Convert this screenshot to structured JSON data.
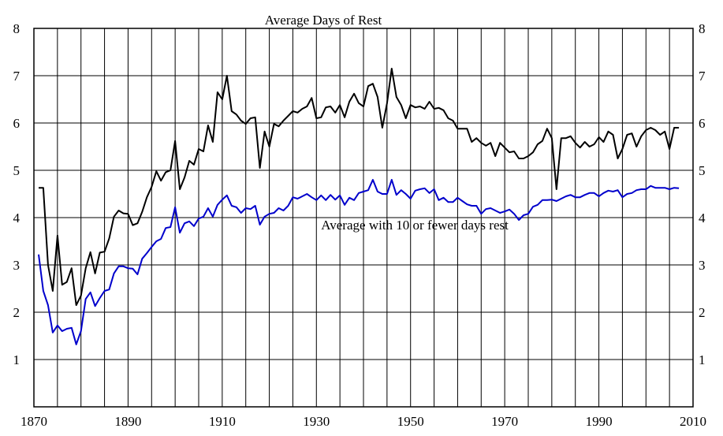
{
  "chart_data": {
    "type": "line",
    "title": "Average Days of Rest",
    "xlabel": "",
    "ylabel": "",
    "xlim": [
      1870,
      2010
    ],
    "ylim": [
      0,
      8
    ],
    "x_ticks": [
      1870,
      1890,
      1910,
      1930,
      1950,
      1970,
      1990,
      2010
    ],
    "y_ticks": [
      1,
      2,
      3,
      4,
      5,
      6,
      7,
      8
    ],
    "x_grid_step": 5,
    "y_grid_step": 1,
    "grid": true,
    "annotation": {
      "text": "Average with 10 or fewer days rest",
      "color": "#0000cc",
      "x": 1931,
      "y": 3.75
    },
    "series": [
      {
        "color": "#000000",
        "x": [
          1871,
          1872,
          1873,
          1874,
          1875,
          1876,
          1877,
          1878,
          1879,
          1880,
          1881,
          1882,
          1883,
          1884,
          1885,
          1886,
          1887,
          1888,
          1889,
          1890,
          1891,
          1892,
          1893,
          1894,
          1895,
          1896,
          1897,
          1898,
          1899,
          1900,
          1901,
          1902,
          1903,
          1904,
          1905,
          1906,
          1907,
          1908,
          1909,
          1910,
          1911,
          1912,
          1913,
          1914,
          1915,
          1916,
          1917,
          1918,
          1919,
          1920,
          1921,
          1922,
          1923,
          1924,
          1925,
          1926,
          1927,
          1928,
          1929,
          1930,
          1931,
          1932,
          1933,
          1934,
          1935,
          1936,
          1937,
          1938,
          1939,
          1940,
          1941,
          1942,
          1943,
          1944,
          1945,
          1946,
          1947,
          1948,
          1949,
          1950,
          1951,
          1952,
          1953,
          1954,
          1955,
          1956,
          1957,
          1958,
          1959,
          1960,
          1961,
          1962,
          1963,
          1964,
          1965,
          1966,
          1967,
          1968,
          1969,
          1970,
          1971,
          1972,
          1973,
          1974,
          1975,
          1976,
          1977,
          1978,
          1979,
          1980,
          1981,
          1982,
          1983,
          1984,
          1985,
          1986,
          1987,
          1988,
          1989,
          1990,
          1991,
          1992,
          1993,
          1994,
          1995,
          1996,
          1997,
          1998,
          1999,
          2000,
          2001,
          2002,
          2003,
          2004,
          2005,
          2006,
          2007
        ],
        "values": [
          4.63,
          4.63,
          3.0,
          2.45,
          3.62,
          2.58,
          2.64,
          2.93,
          2.15,
          2.35,
          2.93,
          3.27,
          2.82,
          3.26,
          3.28,
          3.56,
          4.02,
          4.15,
          4.09,
          4.08,
          3.84,
          3.88,
          4.12,
          4.43,
          4.65,
          4.98,
          4.78,
          4.96,
          5.0,
          5.62,
          4.6,
          4.85,
          5.2,
          5.12,
          5.45,
          5.4,
          5.95,
          5.6,
          6.65,
          6.5,
          7.0,
          6.25,
          6.18,
          6.05,
          5.98,
          6.1,
          6.12,
          5.05,
          5.82,
          5.5,
          5.98,
          5.93,
          6.05,
          6.15,
          6.25,
          6.22,
          6.3,
          6.35,
          6.53,
          6.1,
          6.12,
          6.33,
          6.35,
          6.22,
          6.38,
          6.12,
          6.45,
          6.62,
          6.42,
          6.35,
          6.78,
          6.83,
          6.55,
          5.9,
          6.42,
          7.15,
          6.55,
          6.38,
          6.1,
          6.38,
          6.33,
          6.35,
          6.3,
          6.45,
          6.3,
          6.32,
          6.27,
          6.1,
          6.05,
          5.88,
          5.88,
          5.88,
          5.6,
          5.68,
          5.58,
          5.52,
          5.58,
          5.3,
          5.58,
          5.48,
          5.38,
          5.4,
          5.25,
          5.25,
          5.3,
          5.38,
          5.55,
          5.62,
          5.88,
          5.68,
          4.6,
          5.68,
          5.68,
          5.72,
          5.58,
          5.48,
          5.6,
          5.5,
          5.55,
          5.7,
          5.6,
          5.82,
          5.75,
          5.25,
          5.45,
          5.75,
          5.78,
          5.5,
          5.72,
          5.85,
          5.9,
          5.85,
          5.75,
          5.82,
          5.45,
          5.9,
          5.9
        ]
      },
      {
        "color": "#0000cc",
        "x": [
          1871,
          1872,
          1873,
          1874,
          1875,
          1876,
          1877,
          1878,
          1879,
          1880,
          1881,
          1882,
          1883,
          1884,
          1885,
          1886,
          1887,
          1888,
          1889,
          1890,
          1891,
          1892,
          1893,
          1894,
          1895,
          1896,
          1897,
          1898,
          1899,
          1900,
          1901,
          1902,
          1903,
          1904,
          1905,
          1906,
          1907,
          1908,
          1909,
          1910,
          1911,
          1912,
          1913,
          1914,
          1915,
          1916,
          1917,
          1918,
          1919,
          1920,
          1921,
          1922,
          1923,
          1924,
          1925,
          1926,
          1927,
          1928,
          1929,
          1930,
          1931,
          1932,
          1933,
          1934,
          1935,
          1936,
          1937,
          1938,
          1939,
          1940,
          1941,
          1942,
          1943,
          1944,
          1945,
          1946,
          1947,
          1948,
          1949,
          1950,
          1951,
          1952,
          1953,
          1954,
          1955,
          1956,
          1957,
          1958,
          1959,
          1960,
          1961,
          1962,
          1963,
          1964,
          1965,
          1966,
          1967,
          1968,
          1969,
          1970,
          1971,
          1972,
          1973,
          1974,
          1975,
          1976,
          1977,
          1978,
          1979,
          1980,
          1981,
          1982,
          1983,
          1984,
          1985,
          1986,
          1987,
          1988,
          1989,
          1990,
          1991,
          1992,
          1993,
          1994,
          1995,
          1996,
          1997,
          1998,
          1999,
          2000,
          2001,
          2002,
          2003,
          2004,
          2005,
          2006,
          2007
        ],
        "values": [
          3.22,
          2.45,
          2.15,
          1.57,
          1.72,
          1.6,
          1.65,
          1.67,
          1.32,
          1.6,
          2.28,
          2.42,
          2.13,
          2.3,
          2.45,
          2.48,
          2.82,
          2.97,
          2.97,
          2.93,
          2.92,
          2.8,
          3.13,
          3.25,
          3.38,
          3.5,
          3.55,
          3.78,
          3.8,
          4.22,
          3.68,
          3.88,
          3.92,
          3.82,
          3.98,
          4.02,
          4.2,
          4.02,
          4.27,
          4.38,
          4.47,
          4.25,
          4.22,
          4.1,
          4.2,
          4.18,
          4.25,
          3.85,
          4.02,
          4.08,
          4.1,
          4.2,
          4.15,
          4.25,
          4.43,
          4.4,
          4.45,
          4.5,
          4.43,
          4.37,
          4.47,
          4.37,
          4.48,
          4.38,
          4.47,
          4.27,
          4.42,
          4.37,
          4.52,
          4.55,
          4.58,
          4.8,
          4.55,
          4.5,
          4.5,
          4.8,
          4.48,
          4.58,
          4.5,
          4.4,
          4.57,
          4.6,
          4.62,
          4.52,
          4.6,
          4.37,
          4.42,
          4.33,
          4.33,
          4.42,
          4.35,
          4.28,
          4.25,
          4.25,
          4.08,
          4.18,
          4.2,
          4.15,
          4.1,
          4.13,
          4.17,
          4.08,
          3.95,
          4.05,
          4.08,
          4.23,
          4.27,
          4.37,
          4.37,
          4.38,
          4.35,
          4.4,
          4.45,
          4.48,
          4.43,
          4.43,
          4.48,
          4.52,
          4.52,
          4.45,
          4.52,
          4.57,
          4.55,
          4.58,
          4.43,
          4.5,
          4.52,
          4.58,
          4.6,
          4.6,
          4.67,
          4.63,
          4.63,
          4.63,
          4.6,
          4.63,
          4.62
        ]
      }
    ]
  }
}
